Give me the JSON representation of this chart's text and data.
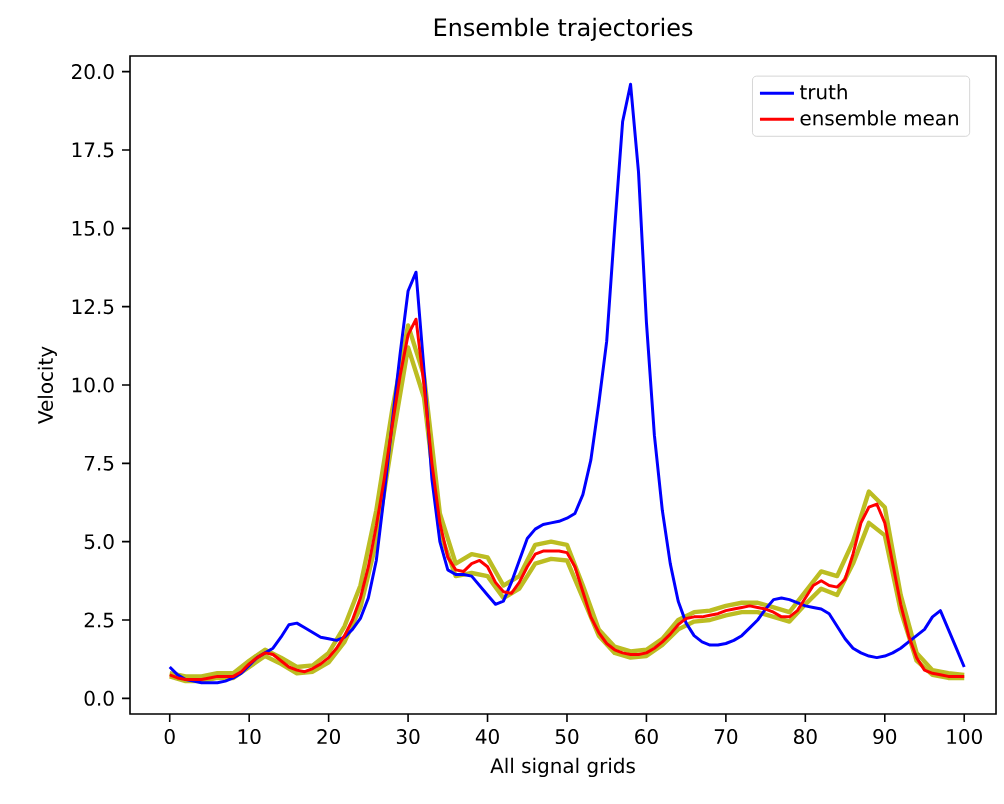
{
  "chart_data": {
    "type": "line",
    "title": "Ensemble trajectories",
    "xlabel": "All signal grids",
    "ylabel": "Velocity",
    "x": [
      0,
      1,
      2,
      3,
      4,
      5,
      6,
      7,
      8,
      9,
      10,
      11,
      12,
      13,
      14,
      15,
      16,
      17,
      18,
      19,
      20,
      21,
      22,
      23,
      24,
      25,
      26,
      27,
      28,
      29,
      30,
      31,
      32,
      33,
      34,
      35,
      36,
      37,
      38,
      39,
      40,
      41,
      42,
      43,
      44,
      45,
      46,
      47,
      48,
      49,
      50,
      51,
      52,
      53,
      54,
      55,
      56,
      57,
      58,
      59,
      60,
      61,
      62,
      63,
      64,
      65,
      66,
      67,
      68,
      69,
      70,
      71,
      72,
      73,
      74,
      75,
      76,
      77,
      78,
      79,
      80,
      81,
      82,
      83,
      84,
      85,
      86,
      87,
      88,
      89,
      90,
      91,
      92,
      93,
      94,
      95,
      96,
      97,
      98,
      99,
      100
    ],
    "series": [
      {
        "color": "#bcbd22",
        "x": [
          0,
          2,
          4,
          6,
          8,
          10,
          12,
          14,
          16,
          18,
          20,
          22,
          24,
          26,
          28,
          30,
          32,
          34,
          36,
          38,
          40,
          42,
          44,
          46,
          48,
          50,
          52,
          54,
          56,
          58,
          60,
          62,
          64,
          66,
          68,
          70,
          72,
          74,
          76,
          78,
          80,
          82,
          84,
          86,
          88,
          90,
          92,
          94,
          96,
          98,
          100
        ],
        "values": [
          0.8,
          0.7,
          0.7,
          0.8,
          0.8,
          1.2,
          1.55,
          1.3,
          1.0,
          1.05,
          1.45,
          2.3,
          3.6,
          6.0,
          9.2,
          11.9,
          10.3,
          5.9,
          4.3,
          4.6,
          4.5,
          3.6,
          3.9,
          4.9,
          5.0,
          4.9,
          3.6,
          2.2,
          1.65,
          1.5,
          1.55,
          1.9,
          2.5,
          2.75,
          2.8,
          2.95,
          3.05,
          3.05,
          2.9,
          2.75,
          3.4,
          4.05,
          3.9,
          5.0,
          6.6,
          6.1,
          3.3,
          1.45,
          0.9,
          0.8,
          0.75
        ]
      },
      {
        "color": "#bcbd22",
        "x": [
          0,
          2,
          4,
          6,
          8,
          10,
          12,
          14,
          16,
          18,
          20,
          22,
          24,
          26,
          28,
          30,
          32,
          34,
          36,
          38,
          40,
          42,
          44,
          46,
          48,
          50,
          52,
          54,
          56,
          58,
          60,
          62,
          64,
          66,
          68,
          70,
          72,
          74,
          76,
          78,
          80,
          82,
          84,
          86,
          88,
          90,
          92,
          94,
          96,
          98,
          100
        ],
        "values": [
          0.7,
          0.55,
          0.55,
          0.65,
          0.65,
          1.0,
          1.35,
          1.1,
          0.8,
          0.85,
          1.15,
          1.8,
          2.9,
          5.0,
          8.2,
          11.2,
          9.6,
          5.3,
          3.9,
          4.0,
          3.9,
          3.2,
          3.5,
          4.3,
          4.45,
          4.4,
          3.2,
          2.0,
          1.45,
          1.3,
          1.35,
          1.7,
          2.2,
          2.45,
          2.5,
          2.65,
          2.75,
          2.75,
          2.6,
          2.45,
          3.0,
          3.5,
          3.3,
          4.3,
          5.6,
          5.2,
          2.8,
          1.2,
          0.75,
          0.65,
          0.65
        ]
      },
      {
        "name": "truth",
        "color": "#0000ff",
        "values": [
          1.0,
          0.75,
          0.6,
          0.55,
          0.5,
          0.5,
          0.5,
          0.55,
          0.65,
          0.8,
          1.05,
          1.3,
          1.45,
          1.6,
          1.95,
          2.35,
          2.4,
          2.25,
          2.1,
          1.95,
          1.9,
          1.85,
          1.95,
          2.2,
          2.55,
          3.2,
          4.4,
          6.5,
          8.8,
          11.0,
          13.0,
          13.6,
          10.5,
          7.0,
          5.0,
          4.1,
          3.95,
          3.95,
          3.9,
          3.6,
          3.3,
          3.0,
          3.1,
          3.7,
          4.4,
          5.1,
          5.4,
          5.55,
          5.6,
          5.65,
          5.75,
          5.9,
          6.5,
          7.6,
          9.4,
          11.4,
          15.0,
          18.4,
          19.6,
          16.8,
          12.0,
          8.4,
          6.0,
          4.3,
          3.1,
          2.4,
          2.0,
          1.8,
          1.7,
          1.7,
          1.75,
          1.85,
          2.0,
          2.25,
          2.5,
          2.85,
          3.15,
          3.2,
          3.15,
          3.05,
          2.95,
          2.9,
          2.85,
          2.7,
          2.3,
          1.9,
          1.6,
          1.45,
          1.35,
          1.3,
          1.35,
          1.45,
          1.6,
          1.8,
          2.0,
          2.2,
          2.6,
          2.8,
          2.2,
          1.6,
          1.0
        ]
      },
      {
        "name": "ensemble mean",
        "color": "#ff0000",
        "values": [
          0.75,
          0.65,
          0.6,
          0.6,
          0.6,
          0.65,
          0.7,
          0.7,
          0.7,
          0.85,
          1.1,
          1.3,
          1.45,
          1.4,
          1.2,
          1.0,
          0.9,
          0.85,
          0.95,
          1.1,
          1.3,
          1.6,
          2.0,
          2.5,
          3.2,
          4.2,
          5.5,
          7.0,
          8.7,
          10.3,
          11.6,
          12.1,
          10.0,
          7.5,
          5.6,
          4.5,
          4.1,
          4.05,
          4.3,
          4.4,
          4.2,
          3.7,
          3.4,
          3.35,
          3.7,
          4.2,
          4.6,
          4.7,
          4.7,
          4.7,
          4.65,
          4.2,
          3.4,
          2.6,
          2.1,
          1.75,
          1.55,
          1.45,
          1.4,
          1.4,
          1.45,
          1.6,
          1.8,
          2.05,
          2.35,
          2.55,
          2.6,
          2.6,
          2.65,
          2.7,
          2.8,
          2.85,
          2.9,
          2.95,
          2.9,
          2.85,
          2.75,
          2.6,
          2.6,
          2.8,
          3.2,
          3.6,
          3.75,
          3.6,
          3.55,
          3.8,
          4.6,
          5.6,
          6.1,
          6.2,
          5.6,
          4.3,
          3.0,
          2.0,
          1.3,
          0.9,
          0.8,
          0.75,
          0.7,
          0.7,
          0.7
        ]
      }
    ],
    "xlim": [
      -5,
      104
    ],
    "ylim": [
      -0.5,
      20.5
    ],
    "xticks": [
      0,
      10,
      20,
      30,
      40,
      50,
      60,
      70,
      80,
      90,
      100
    ],
    "yticks": [
      {
        "value": 0,
        "label": "0.0"
      },
      {
        "value": 2.5,
        "label": "2.5"
      },
      {
        "value": 5,
        "label": "5.0"
      },
      {
        "value": 7.5,
        "label": "7.5"
      },
      {
        "value": 10,
        "label": "10.0"
      },
      {
        "value": 12.5,
        "label": "12.5"
      },
      {
        "value": 15,
        "label": "15.0"
      },
      {
        "value": 17.5,
        "label": "17.5"
      },
      {
        "value": 20,
        "label": "20.0"
      }
    ],
    "legend": "top right",
    "marker": "none",
    "line_style": "solid",
    "grid": false
  }
}
